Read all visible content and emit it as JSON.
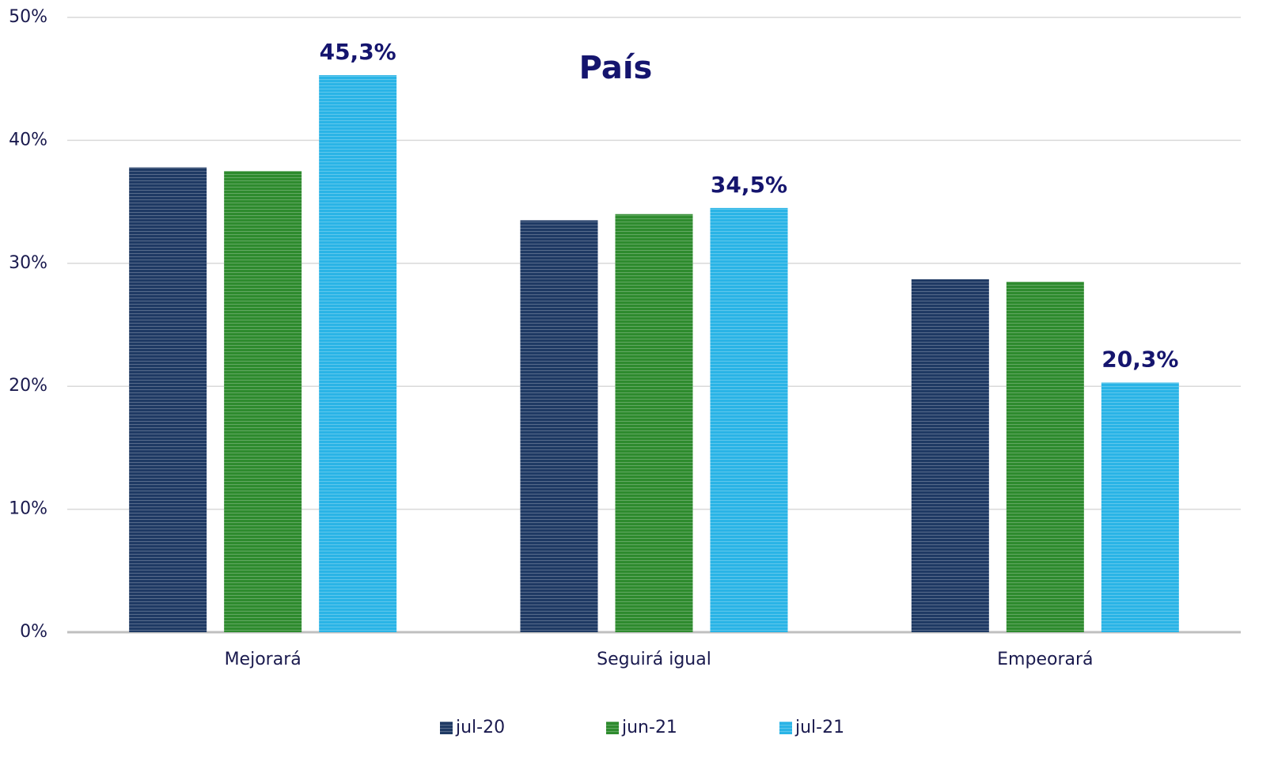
{
  "chart_data": {
    "type": "bar",
    "title": "País",
    "categories": [
      "Mejorará",
      "Seguirá igual",
      "Empeorará"
    ],
    "series": [
      {
        "name": "jul-20",
        "color": "#1f3a64",
        "values": [
          37.8,
          33.5,
          28.7
        ]
      },
      {
        "name": "jun-21",
        "color": "#2e8b2e",
        "values": [
          37.5,
          34.0,
          28.5
        ]
      },
      {
        "name": "jul-21",
        "color": "#2ab4e6",
        "values": [
          45.3,
          34.5,
          20.3
        ],
        "value_labels": [
          "45,3%",
          "34,5%",
          "20,3%"
        ]
      }
    ],
    "ylim": [
      0,
      50
    ],
    "yticks": [
      {
        "value": 0,
        "label": "0%"
      },
      {
        "value": 10,
        "label": "10%"
      },
      {
        "value": 20,
        "label": "20%"
      },
      {
        "value": 30,
        "label": "30%"
      },
      {
        "value": 40,
        "label": "40%"
      },
      {
        "value": 50,
        "label": "50%"
      }
    ],
    "grid": true,
    "legend": "bottom"
  }
}
